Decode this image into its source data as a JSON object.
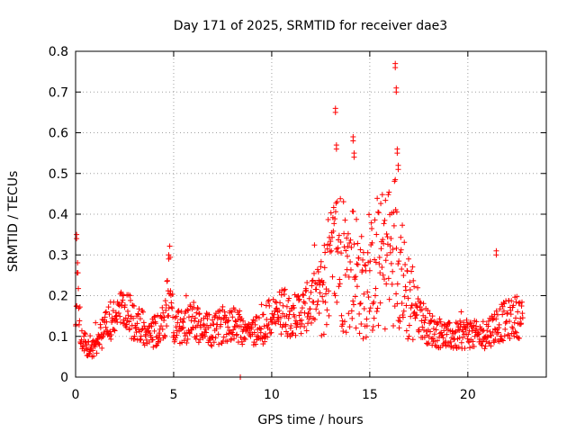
{
  "chart_data": {
    "type": "scatter",
    "title": "Day 171 of 2025, SRMTID for receiver dae3",
    "xlabel": "GPS time / hours",
    "ylabel": "SRMTID / TECUs",
    "xlim": [
      0,
      24
    ],
    "ylim": [
      0,
      0.8
    ],
    "xticks": [
      0,
      5,
      10,
      15,
      20
    ],
    "yticks": [
      0,
      0.1,
      0.2,
      0.3,
      0.4,
      0.5,
      0.6,
      0.7,
      0.8
    ],
    "xtick_labels": [
      "0",
      "5",
      "10",
      "15",
      "20"
    ],
    "ytick_labels": [
      "0",
      "0.1",
      "0.2",
      "0.3",
      "0.4",
      "0.5",
      "0.6",
      "0.7",
      "0.8"
    ],
    "grid": true,
    "marker": "plus",
    "series_color": "#ff0000",
    "series": [
      {
        "name": "SRMTID",
        "envelope": {
          "x": [
            0.0,
            0.05,
            0.3,
            0.6,
            1.0,
            1.5,
            2.0,
            2.5,
            3.0,
            3.5,
            4.0,
            4.5,
            4.8,
            5.0,
            5.5,
            6.0,
            6.5,
            7.0,
            7.5,
            8.0,
            8.5,
            9.0,
            9.5,
            10.0,
            10.5,
            11.0,
            11.5,
            12.0,
            12.5,
            13.0,
            13.4,
            13.8,
            14.2,
            14.6,
            15.0,
            15.4,
            15.8,
            16.1,
            16.4,
            16.7,
            17.0,
            17.3,
            17.6,
            18.0,
            18.5,
            19.0,
            19.5,
            20.0,
            20.5,
            21.0,
            21.5,
            22.0,
            22.5,
            22.8
          ],
          "y": [
            0.1,
            0.25,
            0.09,
            0.08,
            0.07,
            0.12,
            0.15,
            0.16,
            0.14,
            0.12,
            0.11,
            0.12,
            0.24,
            0.13,
            0.12,
            0.14,
            0.12,
            0.11,
            0.13,
            0.14,
            0.12,
            0.11,
            0.12,
            0.15,
            0.16,
            0.15,
            0.16,
            0.18,
            0.21,
            0.26,
            0.32,
            0.24,
            0.28,
            0.22,
            0.24,
            0.26,
            0.29,
            0.3,
            0.34,
            0.22,
            0.2,
            0.18,
            0.15,
            0.12,
            0.11,
            0.1,
            0.1,
            0.11,
            0.1,
            0.11,
            0.13,
            0.14,
            0.15,
            0.14
          ]
        },
        "peaks": [
          {
            "x": 0.05,
            "y": 0.35
          },
          {
            "x": 4.75,
            "y": 0.3
          },
          {
            "x": 13.25,
            "y": 0.66
          },
          {
            "x": 13.3,
            "y": 0.57
          },
          {
            "x": 14.15,
            "y": 0.59
          },
          {
            "x": 14.2,
            "y": 0.55
          },
          {
            "x": 16.3,
            "y": 0.77
          },
          {
            "x": 16.35,
            "y": 0.71
          },
          {
            "x": 16.4,
            "y": 0.56
          },
          {
            "x": 16.45,
            "y": 0.52
          },
          {
            "x": 21.45,
            "y": 0.31
          },
          {
            "x": 8.4,
            "y": 0.0
          }
        ]
      }
    ]
  }
}
